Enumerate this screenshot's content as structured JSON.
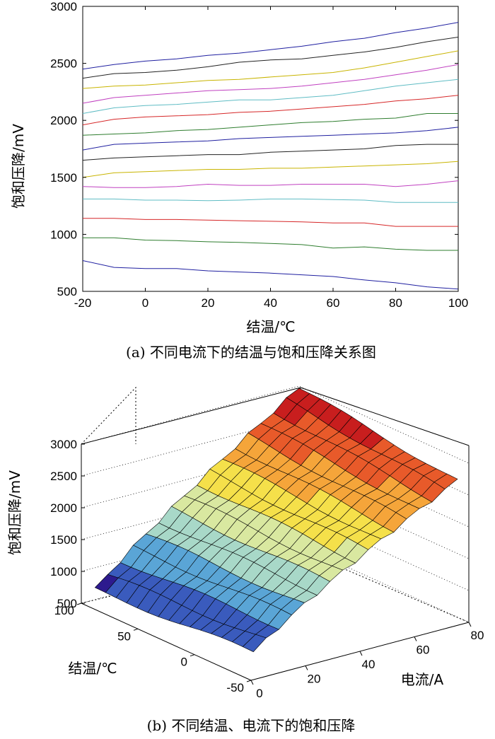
{
  "chart_data": [
    {
      "type": "line",
      "ylabel": "饱和压降/mV",
      "xlabel": "结温/℃",
      "caption": "(a) 不同电流下的结温与饱和压降关系图",
      "xlim": [
        -20,
        100
      ],
      "ylim": [
        500,
        3000
      ],
      "x_ticks": [
        "-20",
        "0",
        "20",
        "40",
        "60",
        "80",
        "100"
      ],
      "y_ticks": [
        "500",
        "1000",
        "1500",
        "2000",
        "2500",
        "3000"
      ],
      "grid": false,
      "x": [
        -20,
        -10,
        0,
        10,
        20,
        30,
        40,
        50,
        60,
        70,
        80,
        90,
        100
      ],
      "series": [
        {
          "color": "#1f1fa0",
          "values": [
            770,
            710,
            700,
            700,
            680,
            670,
            660,
            645,
            630,
            600,
            575,
            540,
            520
          ]
        },
        {
          "color": "#2e7d2e",
          "values": [
            970,
            970,
            950,
            945,
            935,
            930,
            920,
            910,
            880,
            890,
            870,
            860,
            860
          ]
        },
        {
          "color": "#d62728",
          "values": [
            1140,
            1140,
            1130,
            1130,
            1125,
            1120,
            1115,
            1110,
            1100,
            1100,
            1070,
            1070,
            1070
          ]
        },
        {
          "color": "#5fbcc4",
          "values": [
            1310,
            1310,
            1300,
            1300,
            1295,
            1300,
            1310,
            1310,
            1305,
            1300,
            1280,
            1280,
            1280
          ]
        },
        {
          "color": "#c040c0",
          "values": [
            1420,
            1410,
            1410,
            1420,
            1440,
            1430,
            1430,
            1440,
            1440,
            1440,
            1420,
            1440,
            1470
          ]
        },
        {
          "color": "#c8b400",
          "values": [
            1500,
            1540,
            1550,
            1560,
            1570,
            1570,
            1580,
            1580,
            1590,
            1600,
            1610,
            1620,
            1640
          ]
        },
        {
          "color": "#222222",
          "values": [
            1650,
            1670,
            1680,
            1690,
            1700,
            1700,
            1720,
            1730,
            1740,
            1750,
            1780,
            1790,
            1790
          ]
        },
        {
          "color": "#1f1fa0",
          "values": [
            1740,
            1790,
            1800,
            1810,
            1820,
            1840,
            1850,
            1860,
            1870,
            1880,
            1890,
            1910,
            1940
          ]
        },
        {
          "color": "#2e7d2e",
          "values": [
            1870,
            1880,
            1890,
            1910,
            1920,
            1940,
            1960,
            1980,
            1990,
            2010,
            2020,
            2060,
            2060
          ]
        },
        {
          "color": "#d62728",
          "values": [
            1960,
            2010,
            2030,
            2040,
            2050,
            2070,
            2080,
            2100,
            2120,
            2140,
            2170,
            2190,
            2220
          ]
        },
        {
          "color": "#5fbcc4",
          "values": [
            2060,
            2110,
            2130,
            2140,
            2160,
            2180,
            2180,
            2200,
            2220,
            2260,
            2300,
            2330,
            2360
          ]
        },
        {
          "color": "#c040c0",
          "values": [
            2150,
            2200,
            2220,
            2240,
            2260,
            2270,
            2280,
            2300,
            2330,
            2360,
            2400,
            2440,
            2490
          ]
        },
        {
          "color": "#c8b400",
          "values": [
            2280,
            2300,
            2310,
            2330,
            2350,
            2360,
            2380,
            2400,
            2420,
            2460,
            2510,
            2560,
            2610
          ]
        },
        {
          "color": "#222222",
          "values": [
            2370,
            2410,
            2420,
            2440,
            2470,
            2510,
            2530,
            2540,
            2570,
            2600,
            2640,
            2690,
            2730
          ]
        },
        {
          "color": "#1f1fa0",
          "values": [
            2450,
            2490,
            2520,
            2540,
            2570,
            2590,
            2620,
            2650,
            2690,
            2720,
            2770,
            2810,
            2860
          ]
        }
      ]
    },
    {
      "type": "surface3d",
      "zlabel": "饱和压降/mV",
      "xlabel": "电流/A",
      "ylabel": "结温/℃",
      "caption": "(b) 不同结温、电流下的饱和压降",
      "xlim": [
        0,
        80
      ],
      "ylim": [
        -50,
        100
      ],
      "zlim": [
        500,
        3000
      ],
      "x_ticks": [
        "0",
        "20",
        "40",
        "60",
        "80"
      ],
      "y_ticks": [
        "-50",
        "0",
        "50",
        "100"
      ],
      "z_ticks": [
        "500",
        "1000",
        "1500",
        "2000",
        "2500",
        "3000"
      ],
      "colormap": [
        "#2d1a8e",
        "#3a5bbd",
        "#5aa5d6",
        "#a8d8c8",
        "#d9e8a0",
        "#f5e04a",
        "#f5a53a",
        "#e85a2a",
        "#c81e1e"
      ],
      "surface": "saturation voltage increases with current (≈ 500 mV at 0 A to ≈ 2800–3000 mV at 80 A), increasing slightly with junction temperature at high current and decreasing slightly at low current"
    }
  ]
}
